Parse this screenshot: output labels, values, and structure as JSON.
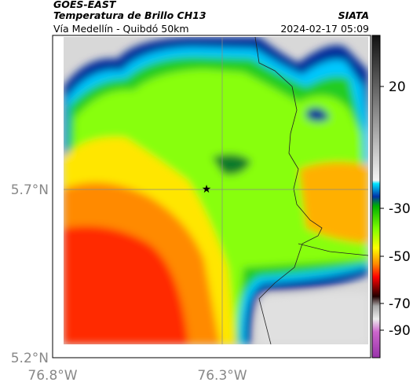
{
  "header": {
    "source": "GOES-EAST",
    "title": "Temperatura de Brillo CH13",
    "brand": "SIATA",
    "route": "Vía Medellín - Quibdó 50km",
    "timestamp": "2024-02-17 05:09"
  },
  "map": {
    "lat_labels": [
      "5.7°N",
      "5.2°N"
    ],
    "lon_labels": [
      "76.8°W",
      "76.3°W"
    ]
  },
  "colorbar": {
    "tick_labels": [
      "20",
      "-30",
      "-50",
      "-70",
      "-90"
    ]
  }
}
